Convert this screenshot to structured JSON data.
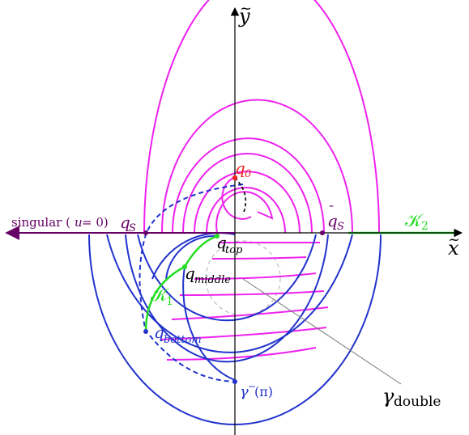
{
  "axes": {
    "x_label_base": "x",
    "x_label_accent": "~",
    "y_label_base": "y",
    "y_label_accent": "~"
  },
  "labels": {
    "q0_base": "q",
    "q0_sub": "0",
    "qS_left_base": "q",
    "qS_left_sub": "S",
    "qS_right_base": "q",
    "qS_right_bar": "¯",
    "qS_right_sub": "S",
    "qtop_base": "q",
    "qtop_sub": "top",
    "qmiddle_base": "q",
    "qmiddle_sub": "middle",
    "qbottom_base": "q",
    "qbottom_sub": "bottom",
    "K1_base": "𝒦",
    "K1_sub": "1",
    "K2_base": "𝒦",
    "K2_sub": "2",
    "singular_text": "singular (",
    "singular_u": "u",
    "singular_rest": " = 0)",
    "gamma_minus": "γ",
    "gamma_minus_sup": "−",
    "gamma_minus_arg": "(π)",
    "gamma_double_base": "γ",
    "gamma_double_sub": "double"
  },
  "colors": {
    "magenta": "#ee22ee",
    "blue": "#2233cc",
    "green": "#22dd22",
    "red": "#ee2222",
    "purple": "#660066",
    "black": "#000000",
    "gray": "#bbbbbb"
  }
}
